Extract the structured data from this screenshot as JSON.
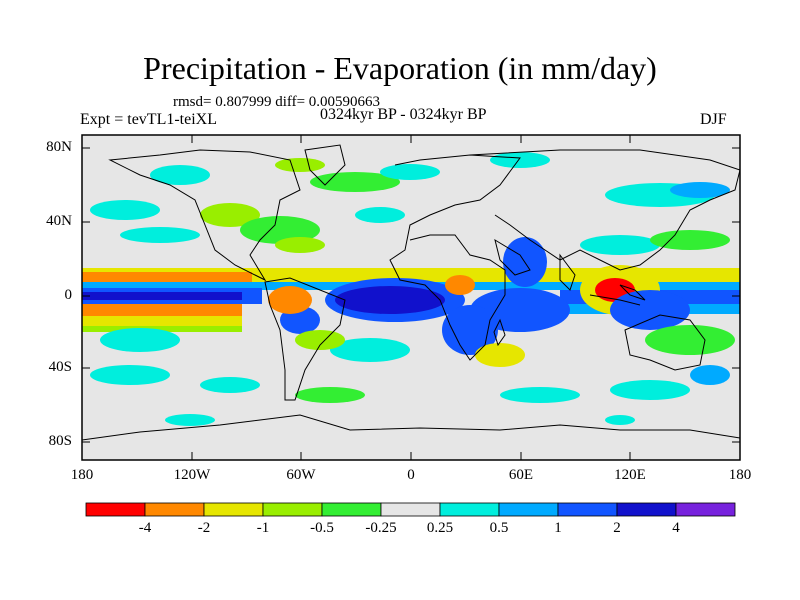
{
  "title": "Precipitation - Evaporation (in mm/day)",
  "stats": "rmsd= 0.807999 diff= 0.00590663",
  "experiment": "Expt = tevTL1-teiXL",
  "period": "0324kyr BP - 0324kyr BP",
  "season": "DJF",
  "map": {
    "lat_labels": [
      "80N",
      "40N",
      "0",
      "40S",
      "80S"
    ],
    "lon_labels": [
      "180",
      "120W",
      "60W",
      "0",
      "60E",
      "120E",
      "180"
    ]
  },
  "colorbar": {
    "labels": [
      "-4",
      "-2",
      "-1",
      "-0.5",
      "-0.25",
      "0.25",
      "0.5",
      "1",
      "2",
      "4"
    ],
    "colors": [
      "#ff0000",
      "#ff8800",
      "#e6e600",
      "#99ee00",
      "#33ee33",
      "#e6e6e6",
      "#00eedd",
      "#00aaff",
      "#1155ff",
      "#1111cc",
      "#7722dd"
    ]
  }
}
